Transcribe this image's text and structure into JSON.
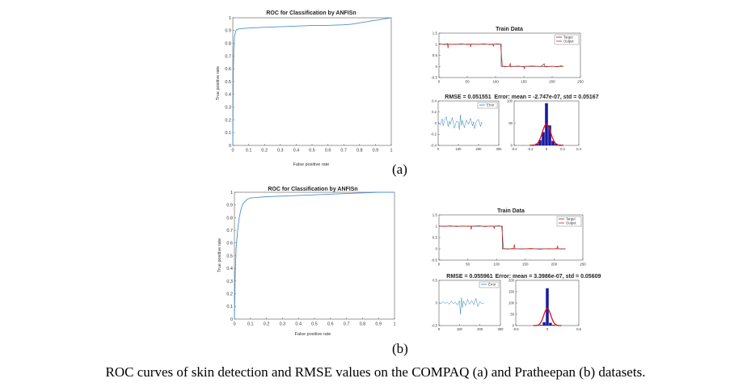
{
  "colors": {
    "roc_line": "#4a90d0",
    "target": "#444444",
    "output": "#cc2222",
    "error": "#2f86b8",
    "hist_bar": "#1a1aa0",
    "hist_fit": "#e01010",
    "axis": "#555555"
  },
  "labels": {
    "panel_a": "(a)",
    "panel_b": "(b)",
    "caption": "ROC curves of skin detection and RMSE values on the COMPAQ (a) and Pratheepan (b) datasets."
  },
  "chart_data": [
    {
      "id": "roc_a",
      "type": "line",
      "title": "ROC for Classification by ANFISn",
      "xlabel": "False positive rate",
      "ylabel": "True positive rate",
      "xlim": [
        0,
        1
      ],
      "ylim": [
        0,
        1
      ],
      "xticks": [
        "0",
        "0.1",
        "0.2",
        "0.3",
        "0.4",
        "0.5",
        "0.6",
        "0.7",
        "0.8",
        "0.9",
        "1"
      ],
      "yticks": [
        "0",
        "0.1",
        "0.2",
        "0.3",
        "0.4",
        "0.5",
        "0.6",
        "0.7",
        "0.8",
        "0.9",
        "1"
      ],
      "grid": false,
      "series": [
        {
          "x": [
            0,
            0.003,
            0.006,
            0.01,
            0.015,
            0.02,
            0.03,
            0.05,
            0.1,
            0.2,
            0.3,
            0.4,
            0.5,
            0.6,
            0.7,
            0.75,
            0.8,
            0.85,
            0.9,
            0.95,
            1
          ],
          "y": [
            0,
            0.55,
            0.75,
            0.85,
            0.88,
            0.9,
            0.91,
            0.915,
            0.92,
            0.925,
            0.93,
            0.935,
            0.94,
            0.94,
            0.945,
            0.95,
            0.96,
            0.97,
            0.98,
            0.99,
            1
          ]
        }
      ]
    },
    {
      "id": "train_a",
      "type": "line",
      "title": "Train Data",
      "xlim": [
        0,
        250
      ],
      "ylim": [
        -0.5,
        1.5
      ],
      "xticks": [
        "0",
        "50",
        "100",
        "150",
        "200",
        "250"
      ],
      "yticks": [
        "-0.5",
        "0",
        "0.5",
        "1",
        "1.5"
      ],
      "legend": [
        "Target",
        "Output"
      ],
      "legend_position": "top-right",
      "series": [
        {
          "name": "Target",
          "x": [
            0,
            110,
            110,
            220
          ],
          "y": [
            1,
            1,
            0,
            0
          ]
        },
        {
          "name": "Output",
          "x": [
            0,
            10,
            15,
            16,
            17,
            30,
            40,
            50,
            55,
            56,
            57,
            70,
            80,
            90,
            95,
            96,
            97,
            105,
            109,
            112,
            115,
            125,
            126,
            127,
            140,
            150,
            151,
            152,
            165,
            180,
            186,
            187,
            188,
            200,
            210,
            215,
            220
          ],
          "y": [
            1.02,
            0.98,
            1.03,
            0.82,
            1.0,
            0.99,
            1.02,
            0.98,
            1.0,
            0.87,
            1.01,
            0.99,
            1.02,
            0.98,
            1.01,
            0.9,
            1.0,
            1.02,
            0.98,
            0.02,
            -0.02,
            0.01,
            0.15,
            -0.01,
            0.02,
            -0.02,
            -0.12,
            0.0,
            0.02,
            -0.01,
            0.12,
            0.0,
            -0.02,
            0.01,
            -0.02,
            0.03,
            0.0
          ]
        }
      ]
    },
    {
      "id": "rmse_a",
      "type": "line",
      "title": "RMSE = 0.051551",
      "xlim": [
        0,
        300
      ],
      "ylim": [
        -0.4,
        0.4
      ],
      "xticks": [
        "0",
        "100",
        "200",
        "300"
      ],
      "yticks": [
        "-0.4",
        "-0.2",
        "0",
        "0.2",
        "0.4"
      ],
      "legend": [
        "Error"
      ],
      "legend_position": "top-right",
      "series": [
        {
          "name": "Error",
          "x": [
            0,
            10,
            20,
            25,
            30,
            40,
            50,
            55,
            60,
            70,
            80,
            90,
            100,
            105,
            110,
            115,
            120,
            130,
            140,
            150,
            160,
            170,
            175,
            180,
            190,
            200,
            210,
            215,
            220
          ],
          "y": [
            0.02,
            -0.03,
            0.08,
            -0.05,
            0.03,
            0.12,
            -0.06,
            0.04,
            -0.02,
            0.1,
            -0.09,
            0.03,
            0.02,
            -0.12,
            0.15,
            -0.04,
            0.05,
            -0.08,
            0.06,
            -0.02,
            0.09,
            -0.05,
            0.03,
            -0.1,
            0.04,
            0.07,
            -0.06,
            0.02,
            0.0
          ]
        }
      ]
    },
    {
      "id": "err_a",
      "type": "bar",
      "title": "Error: mean = -2.747e-07, std = 0.05167",
      "xlim": [
        -0.4,
        0.4
      ],
      "ylim": [
        0,
        100
      ],
      "xticks": [
        "-0.4",
        "-0.2",
        "0",
        "0.2",
        "0.4"
      ],
      "yticks": [
        "0",
        "50",
        "100"
      ],
      "categories": [
        -0.16,
        -0.12,
        -0.08,
        -0.04,
        0.0,
        0.04,
        0.08,
        0.12,
        0.16
      ],
      "values": [
        2,
        4,
        12,
        30,
        95,
        45,
        10,
        4,
        2
      ],
      "fit": {
        "mean": 0,
        "std": 0.05167,
        "peak": 48
      }
    },
    {
      "id": "roc_b",
      "type": "line",
      "title": "ROC for Classification by ANFISn",
      "xlabel": "False positive rate",
      "ylabel": "True positive rate",
      "xlim": [
        0,
        1
      ],
      "ylim": [
        0,
        1
      ],
      "xticks": [
        "0",
        "0.1",
        "0.2",
        "0.3",
        "0.4",
        "0.5",
        "0.6",
        "0.7",
        "0.8",
        "0.9",
        "1"
      ],
      "yticks": [
        "0",
        "0.1",
        "0.2",
        "0.3",
        "0.4",
        "0.5",
        "0.6",
        "0.7",
        "0.8",
        "0.9",
        "1"
      ],
      "grid": false,
      "series": [
        {
          "x": [
            0,
            0.005,
            0.01,
            0.02,
            0.03,
            0.04,
            0.05,
            0.06,
            0.08,
            0.1,
            0.15,
            0.2,
            0.3,
            0.4,
            0.5,
            0.6,
            0.7,
            0.8,
            0.9,
            1
          ],
          "y": [
            0,
            0.35,
            0.55,
            0.7,
            0.8,
            0.86,
            0.9,
            0.92,
            0.945,
            0.955,
            0.96,
            0.965,
            0.97,
            0.975,
            0.98,
            0.985,
            0.99,
            0.995,
            1,
            1
          ]
        }
      ]
    },
    {
      "id": "train_b",
      "type": "line",
      "title": "Train Data",
      "xlim": [
        0,
        250
      ],
      "ylim": [
        -0.5,
        1.5
      ],
      "xticks": [
        "0",
        "50",
        "100",
        "150",
        "200",
        "250"
      ],
      "yticks": [
        "-0.5",
        "0",
        "0.5",
        "1",
        "1.5"
      ],
      "legend": [
        "Target",
        "Output"
      ],
      "legend_position": "top-right",
      "series": [
        {
          "name": "Target",
          "x": [
            0,
            110,
            110,
            220
          ],
          "y": [
            1,
            1,
            0,
            0
          ]
        },
        {
          "name": "Output",
          "x": [
            0,
            10,
            20,
            30,
            40,
            50,
            55,
            56,
            57,
            70,
            80,
            90,
            95,
            96,
            97,
            104,
            109,
            112,
            118,
            125,
            130,
            131,
            132,
            145,
            160,
            175,
            190,
            200,
            205,
            206,
            207,
            215,
            220
          ],
          "y": [
            1.01,
            0.99,
            1.02,
            0.98,
            1.01,
            0.99,
            1.0,
            0.85,
            1.0,
            1.02,
            0.98,
            1.01,
            1.0,
            0.88,
            1.0,
            1.02,
            0.99,
            0.03,
            -0.02,
            0.01,
            0.02,
            0.2,
            0.0,
            -0.01,
            0.02,
            -0.02,
            0.01,
            0.0,
            0.02,
            0.14,
            0.0,
            -0.01,
            0.0
          ]
        }
      ]
    },
    {
      "id": "rmse_b",
      "type": "line",
      "title": "RMSE = 0.055961",
      "xlim": [
        0,
        300
      ],
      "ylim": [
        -0.5,
        0.5
      ],
      "xticks": [
        "0",
        "100",
        "200",
        "300"
      ],
      "yticks": [
        "-0.5",
        "0",
        "0.5"
      ],
      "legend": [
        "Error"
      ],
      "legend_position": "top-right",
      "series": [
        {
          "name": "Error",
          "x": [
            0,
            10,
            20,
            30,
            40,
            50,
            60,
            70,
            80,
            90,
            100,
            105,
            110,
            115,
            120,
            130,
            140,
            150,
            160,
            170,
            180,
            190,
            200,
            210,
            220
          ],
          "y": [
            0.01,
            -0.02,
            0.03,
            -0.01,
            0.02,
            -0.03,
            0.04,
            -0.02,
            0.02,
            -0.05,
            0.05,
            -0.25,
            0.12,
            -0.1,
            0.04,
            -0.06,
            0.08,
            -0.03,
            0.05,
            -0.04,
            0.1,
            -0.08,
            0.03,
            -0.02,
            0.0
          ]
        }
      ]
    },
    {
      "id": "err_b",
      "type": "bar",
      "title": "Error: mean = 3.3986e-07, std = 0.05609",
      "xlim": [
        -0.5,
        0.5
      ],
      "ylim": [
        0,
        200
      ],
      "xticks": [
        "-0.5",
        "0",
        "0.5"
      ],
      "yticks": [
        "0",
        "50",
        "100",
        "150",
        "200"
      ],
      "categories": [
        -0.1,
        -0.05,
        0.0,
        0.05,
        0.1
      ],
      "values": [
        3,
        15,
        165,
        12,
        3
      ],
      "fit": {
        "mean": 0,
        "std": 0.05609,
        "peak": 75
      }
    }
  ]
}
